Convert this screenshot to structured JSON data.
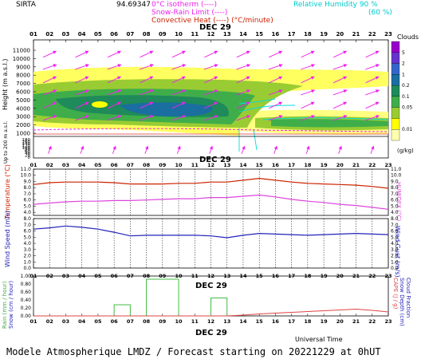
{
  "header": {
    "site": "SIRTA",
    "coord": "94.69347",
    "legend_isotherm": "0°C isotherm (----)",
    "legend_snow_rain": "Snow-Rain Limit (----)",
    "legend_convective": "Convective Heat (----) (°C/minute)",
    "legend_rh": "Relative Humidity  90 %",
    "legend_rh2": "(60 %)"
  },
  "footer": {
    "title": "Modele Atmospherique LMDZ / Forecast starting on 20221229 at 0hUT",
    "universal_time": "Universal Time"
  },
  "chart_data": [
    {
      "type": "heatmap",
      "panel": "clouds",
      "date_label": "DEC 29",
      "x_ticks": [
        "01",
        "02",
        "03",
        "04",
        "05",
        "06",
        "07",
        "08",
        "09",
        "10",
        "11",
        "12",
        "13",
        "14",
        "15",
        "16",
        "17",
        "18",
        "19",
        "20",
        "21",
        "22",
        "23"
      ],
      "ylabel": "Height (m a.s.l.)",
      "ylabel_low": "Up to 200 m a.s.l.",
      "y_ticks_upper": [
        "11000",
        "10000",
        "9000",
        "8000",
        "7000",
        "6000",
        "5000",
        "4000",
        "3000",
        "2000",
        "1000"
      ],
      "y_ticks_lower": [
        "180",
        "160",
        "140",
        "120",
        "100",
        "80",
        "60",
        "40",
        "20",
        "0"
      ],
      "colorbar_title": "Clouds",
      "colorbar_unit": "(g/kg)",
      "colorbar_ticks": [
        "5",
        "2",
        "1",
        "0.2",
        "0.1",
        "0.05",
        "0.01"
      ],
      "colorbar_colors": [
        "#9900cc",
        "#6633cc",
        "#3366cc",
        "#1a6ea0",
        "#1f8a5a",
        "#3fae4a",
        "#99cc33",
        "#ffff00",
        "#ffffb0"
      ]
    },
    {
      "type": "line",
      "panel": "temperature",
      "date_label": "DEC 29",
      "x": [
        "01",
        "02",
        "03",
        "04",
        "05",
        "06",
        "07",
        "08",
        "09",
        "10",
        "11",
        "12",
        "13",
        "14",
        "15",
        "16",
        "17",
        "18",
        "19",
        "20",
        "21",
        "22",
        "23"
      ],
      "ylabel": "Temperature (°C)",
      "ylabel_right": "HUMIDEX (°C)",
      "y_ticks": [
        "11.0",
        "10.0",
        "9.0",
        "8.0",
        "7.0",
        "6.0",
        "5.0",
        "4.0"
      ],
      "ylim": [
        3.5,
        11.0
      ],
      "series": [
        {
          "name": "Temperature",
          "color": "#cc2200",
          "values": [
            8.5,
            8.8,
            8.9,
            8.9,
            8.9,
            8.8,
            8.6,
            8.6,
            8.6,
            8.7,
            8.7,
            8.9,
            8.9,
            9.2,
            9.5,
            9.2,
            8.9,
            8.7,
            8.6,
            8.5,
            8.4,
            8.2,
            7.9
          ]
        },
        {
          "name": "HUMIDEX",
          "color": "#dd44dd",
          "values": [
            5.3,
            5.5,
            5.7,
            5.8,
            5.8,
            5.9,
            5.9,
            6.0,
            6.1,
            6.2,
            6.2,
            6.4,
            6.4,
            6.6,
            6.8,
            6.5,
            6.1,
            5.8,
            5.6,
            5.3,
            5.1,
            4.8,
            4.5
          ]
        }
      ]
    },
    {
      "type": "line",
      "panel": "wind",
      "date_label": "DEC 29",
      "x": [
        "01",
        "02",
        "03",
        "04",
        "05",
        "06",
        "07",
        "08",
        "09",
        "10",
        "11",
        "12",
        "13",
        "14",
        "15",
        "16",
        "17",
        "18",
        "19",
        "20",
        "21",
        "22",
        "23"
      ],
      "ylabel": "Wind Speed (m/s)",
      "ylabel_right": "Wind Gust (m/s)",
      "y_ticks": [
        "8.0",
        "7.0",
        "6.0",
        "5.0",
        "4.0",
        "3.0",
        "2.0",
        "1.0",
        "0.0"
      ],
      "ylim": [
        0.0,
        8.0
      ],
      "series": [
        {
          "name": "Wind Speed",
          "color": "#2222bb",
          "values": [
            6.3,
            6.5,
            6.8,
            6.6,
            6.3,
            5.8,
            5.2,
            5.3,
            5.3,
            5.3,
            5.3,
            5.2,
            4.9,
            5.3,
            5.6,
            5.5,
            5.4,
            5.3,
            5.4,
            5.5,
            5.6,
            5.5,
            5.4
          ]
        }
      ]
    },
    {
      "type": "bar",
      "panel": "precipitation",
      "date_label": "DEC 29",
      "x": [
        "01",
        "02",
        "03",
        "04",
        "05",
        "06",
        "07",
        "08",
        "09",
        "10",
        "11",
        "12",
        "13",
        "14",
        "15",
        "16",
        "17",
        "18",
        "19",
        "20",
        "21",
        "22",
        "23"
      ],
      "ylabel": "Rain (mm / hour)",
      "ylabel2": "Snow (cm / hour)",
      "ylabel_right": "CAPE (J / g)",
      "ylabel_right2": "Snow Depth (cm)",
      "ylabel_right3": "Cloud Fraction",
      "y_ticks": [
        "1.00",
        "0.80",
        "0.60",
        "0.40",
        "0.20",
        "0.00"
      ],
      "ylim": [
        0.0,
        1.0
      ],
      "series": [
        {
          "name": "Rain",
          "color": "#44bb44",
          "values": [
            0,
            0,
            0,
            0,
            0,
            0.28,
            0,
            0.92,
            0,
            0,
            0,
            0.45,
            0,
            0,
            0,
            0,
            0,
            0,
            0,
            0,
            0,
            0,
            0
          ]
        },
        {
          "name": "CAPE",
          "color": "#dd4444",
          "values": [
            0,
            0,
            0,
            0,
            0,
            0,
            0,
            0,
            0,
            0,
            0,
            0,
            0,
            0.02,
            0.05,
            0.07,
            0.09,
            0.11,
            0.13,
            0.15,
            0.17,
            0.14,
            0.1
          ]
        }
      ]
    }
  ]
}
